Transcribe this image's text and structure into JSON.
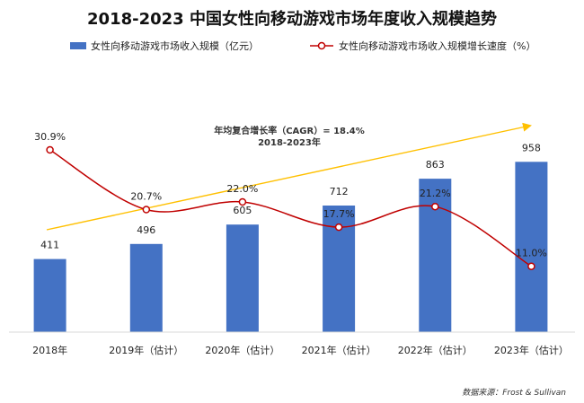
{
  "chart_data": {
    "type": "bar",
    "title": "2018-2023  中国女性向移动游戏市场年度收入规模趋势",
    "categories": [
      "2018年",
      "2019年（估计）",
      "2020年（估计）",
      "2021年（估计）",
      "2022年（估计）",
      "2023年（估计）"
    ],
    "series": [
      {
        "name": "女性向移动游戏市场收入规模（亿元）",
        "type": "bar",
        "color": "#4472C4",
        "values": [
          411,
          496,
          605,
          712,
          863,
          958
        ],
        "labels": [
          "411",
          "496",
          "605",
          "712",
          "863",
          "958"
        ]
      },
      {
        "name": "女性向移动游戏市场收入规模增长速度（%）",
        "type": "line",
        "color": "#C00000",
        "values": [
          30.9,
          20.7,
          22.0,
          17.7,
          21.2,
          11.0
        ],
        "labels": [
          "30.9%",
          "20.7%",
          "22.0%",
          "17.7%",
          "21.2%",
          "11.0%"
        ]
      }
    ],
    "annotation": {
      "line1": "年均复合增长率（CAGR）= 18.4%",
      "line2": "2018-2023年",
      "arrow_color": "#FFC000"
    },
    "source": "数据来源：Frost & Sullivan",
    "bar_ylim": [
      0,
      1000
    ],
    "line_ylim": [
      0,
      40
    ],
    "legend_position": "top",
    "grid": false
  }
}
